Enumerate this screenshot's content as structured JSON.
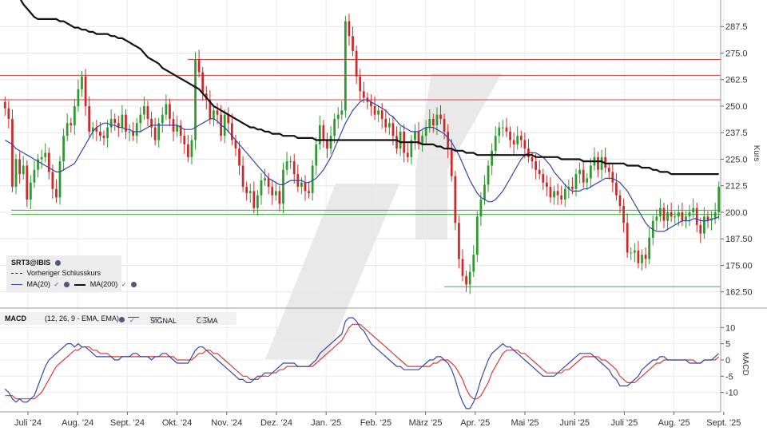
{
  "chart_data": [
    {
      "type": "candlestick",
      "instrument": "SRT3@IBIS",
      "ylabel": "Kurs",
      "ylim": [
        156,
        300
      ],
      "yticks": [
        "287.5",
        "275.0",
        "262.5",
        "250.0",
        "237.5",
        "225.0",
        "212.5",
        "200.0",
        "187.50",
        "175.00",
        "162.50"
      ],
      "xticks": [
        "Juli '24",
        "Aug. '24",
        "Sept. '24",
        "Okt. '24",
        "Nov. '24",
        "Dez. '24",
        "Jan. '25",
        "Feb. '25",
        "März '25",
        "Apr. '25",
        "Mai '25",
        "Juni '25",
        "Juli '25",
        "Aug. '25",
        "Sept. '25"
      ],
      "legend": {
        "title": "SRT3@IBIS",
        "prev_close": "Vorheriger Schlusskurs",
        "ma20": "MA(20)",
        "ma200": "MA(200)"
      },
      "colors": {
        "up": "#2e9a2e",
        "down": "#cc2a2a",
        "ma20": "#3845a8",
        "ma200": "#111111",
        "resistance": "#d93a3a",
        "support": "#3aaa3a"
      },
      "close": [
        249,
        244,
        212,
        225,
        218,
        222,
        206,
        214,
        220,
        225,
        226,
        228,
        219,
        211,
        207,
        224,
        236,
        242,
        241,
        250,
        258,
        264,
        250,
        238,
        240,
        238,
        236,
        235,
        240,
        244,
        242,
        240,
        246,
        238,
        238,
        236,
        242,
        246,
        250,
        244,
        240,
        234,
        242,
        246,
        251,
        244,
        238,
        241,
        236,
        232,
        226,
        234,
        272,
        266,
        256,
        253,
        244,
        248,
        246,
        236,
        246,
        242,
        234,
        230,
        222,
        212,
        209,
        210,
        202,
        208,
        215,
        216,
        212,
        208,
        210,
        204,
        220,
        224,
        224,
        218,
        212,
        214,
        210,
        209,
        222,
        232,
        241,
        234,
        230,
        236,
        244,
        246,
        248,
        290,
        283,
        276,
        264,
        257,
        254,
        252,
        250,
        246,
        248,
        244,
        240,
        242,
        236,
        230,
        238,
        228,
        226,
        234,
        238,
        232,
        236,
        240,
        244,
        241,
        246,
        244,
        238,
        230,
        217,
        195,
        178,
        170,
        166,
        172,
        180,
        198,
        206,
        213,
        222,
        229,
        236,
        240,
        240,
        238,
        234,
        232,
        236,
        234,
        230,
        226,
        224,
        220,
        218,
        214,
        212,
        207,
        210,
        208,
        206,
        211,
        212,
        211,
        218,
        220,
        214,
        216,
        222,
        226,
        220,
        226,
        221,
        219,
        214,
        208,
        203,
        195,
        181,
        181,
        182,
        176,
        180,
        178,
        188,
        196,
        198,
        202,
        196,
        200,
        198,
        198,
        200,
        196,
        198,
        200,
        202,
        194,
        190,
        198,
        196,
        197,
        200,
        212
      ],
      "ma20": [
        234,
        233,
        232,
        230,
        229,
        228,
        227,
        226,
        225,
        224,
        223,
        222,
        221,
        220,
        219,
        219,
        220,
        221,
        222,
        223,
        226,
        229,
        232,
        235,
        238,
        240,
        241,
        242,
        242,
        241,
        241,
        240,
        240,
        239,
        239,
        238,
        238,
        238,
        239,
        240,
        241,
        241,
        241,
        241,
        241,
        241,
        241,
        241,
        240,
        239,
        239,
        239,
        240,
        241,
        242,
        243,
        244,
        244,
        243,
        241,
        240,
        238,
        236,
        234,
        232,
        230,
        228,
        226,
        224,
        222,
        220,
        218,
        216,
        215,
        214,
        213,
        213,
        214,
        215,
        215,
        215,
        215,
        214,
        214,
        215,
        216,
        218,
        220,
        223,
        226,
        230,
        234,
        238,
        242,
        245,
        248,
        250,
        252,
        253,
        253,
        252,
        251,
        250,
        249,
        248,
        246,
        245,
        243,
        241,
        240,
        239,
        238,
        238,
        238,
        239,
        240,
        240,
        240,
        239,
        238,
        237,
        235,
        233,
        230,
        227,
        223,
        219,
        215,
        212,
        209,
        207,
        206,
        205,
        205,
        206,
        208,
        210,
        213,
        216,
        219,
        222,
        225,
        227,
        228,
        228,
        228,
        227,
        226,
        224,
        222,
        219,
        217,
        215,
        213,
        211,
        210,
        210,
        210,
        211,
        211,
        212,
        213,
        214,
        215,
        216,
        216,
        216,
        215,
        214,
        212,
        210,
        207,
        204,
        201,
        198,
        195,
        193,
        192,
        191,
        191,
        191,
        192,
        193,
        194,
        195,
        196,
        196,
        196,
        197,
        197,
        196,
        196,
        196,
        197,
        197,
        198
      ],
      "ma200": [
        310,
        308,
        306,
        303,
        301,
        298,
        296,
        294,
        292,
        291,
        291,
        291,
        291,
        291,
        291,
        290,
        290,
        289,
        288,
        287,
        287,
        286,
        286,
        285,
        285,
        284,
        284,
        284,
        284,
        283,
        283,
        282,
        282,
        281,
        280,
        279,
        278,
        277,
        275,
        273,
        272,
        271,
        270,
        268,
        267,
        266,
        265,
        264,
        263,
        262,
        261,
        260,
        259,
        258,
        256,
        254,
        252,
        250,
        249,
        248,
        247,
        246,
        245,
        244,
        243,
        242,
        241,
        240,
        240,
        239,
        239,
        238,
        238,
        237,
        237,
        237,
        236,
        236,
        236,
        236,
        235,
        235,
        235,
        235,
        235,
        234,
        234,
        234,
        234,
        234,
        234,
        234,
        234,
        234,
        234,
        234,
        234,
        234,
        234,
        234,
        234,
        234,
        234,
        234,
        234,
        234,
        234,
        234,
        233,
        233,
        233,
        233,
        233,
        233,
        232,
        232,
        232,
        232,
        231,
        231,
        230,
        230,
        230,
        229,
        229,
        229,
        228,
        228,
        228,
        227,
        227,
        227,
        227,
        227,
        227,
        227,
        227,
        227,
        227,
        227,
        227,
        227,
        227,
        227,
        227,
        226,
        226,
        226,
        226,
        226,
        226,
        226,
        225,
        225,
        225,
        225,
        225,
        225,
        224,
        224,
        224,
        224,
        224,
        224,
        223,
        223,
        223,
        223,
        223,
        223,
        222,
        222,
        222,
        222,
        221,
        221,
        221,
        220,
        220,
        219,
        219,
        219,
        218,
        218,
        218,
        218,
        218,
        218,
        218,
        218,
        218,
        218,
        218,
        218,
        218,
        218
      ],
      "resistance_levels": [
        272,
        264.5,
        253
      ],
      "support_levels": [
        201,
        199,
        165
      ]
    },
    {
      "type": "line",
      "title": "MACD",
      "params": "(12, 26, 9 - EMA, EMA)",
      "ylabel": "MACD",
      "ylim": [
        -16,
        15
      ],
      "yticks": [
        "10",
        "5",
        "0",
        "-5",
        "-10"
      ],
      "series": [
        {
          "name": "MACD",
          "color": "#3845a8",
          "values": [
            -9,
            -10,
            -12,
            -13,
            -12,
            -13,
            -13,
            -12,
            -11,
            -8,
            -5,
            -2,
            0,
            1,
            2,
            3,
            4,
            5,
            5,
            4,
            5,
            4,
            4,
            3,
            2,
            1,
            1,
            1,
            1,
            1,
            0,
            0,
            1,
            1,
            1,
            2,
            2,
            1,
            1,
            1,
            0,
            1,
            1,
            2,
            2,
            1,
            0,
            -1,
            -1,
            -1,
            -1,
            1,
            3,
            4,
            4,
            3,
            2,
            1,
            0,
            -1,
            -2,
            -3,
            -4,
            -5,
            -6,
            -6,
            -7,
            -7,
            -6,
            -5,
            -5,
            -4,
            -4,
            -4,
            -3,
            -2,
            -1,
            -1,
            -1,
            -1,
            -2,
            -2,
            -2,
            -2,
            -1,
            0,
            2,
            3,
            4,
            5,
            6,
            7,
            8,
            12,
            13,
            13,
            12,
            10,
            9,
            7,
            5,
            4,
            3,
            2,
            1,
            0,
            -1,
            -2,
            -2,
            -3,
            -3,
            -3,
            -3,
            -3,
            -2,
            -1,
            0,
            0,
            1,
            1,
            0,
            -1,
            -3,
            -6,
            -10,
            -13,
            -15,
            -15,
            -13,
            -10,
            -6,
            -3,
            0,
            2,
            3,
            4,
            5,
            4,
            4,
            3,
            2,
            1,
            0,
            -1,
            -2,
            -3,
            -4,
            -5,
            -5,
            -5,
            -5,
            -4,
            -3,
            -2,
            -1,
            0,
            1,
            2,
            2,
            2,
            2,
            1,
            0,
            -1,
            -2,
            -3,
            -5,
            -6,
            -8,
            -8,
            -8,
            -7,
            -6,
            -5,
            -3,
            -2,
            -1,
            0,
            0,
            1,
            1,
            0,
            0,
            0,
            0,
            0,
            0,
            -1,
            -1,
            -1,
            -1,
            0,
            0,
            0,
            1,
            2
          ]
        },
        {
          "name": "SIGNAL",
          "color": "#d93a3a",
          "values": [
            -11,
            -11,
            -11,
            -12,
            -12,
            -12,
            -12,
            -12,
            -12,
            -11,
            -10,
            -8,
            -6,
            -4,
            -2,
            -1,
            0,
            1,
            2,
            3,
            3,
            4,
            4,
            4,
            3,
            3,
            2,
            2,
            2,
            1,
            1,
            1,
            1,
            1,
            1,
            1,
            1,
            1,
            1,
            1,
            1,
            1,
            1,
            1,
            1,
            1,
            1,
            0,
            0,
            0,
            0,
            0,
            1,
            2,
            2,
            3,
            3,
            2,
            2,
            1,
            0,
            -1,
            -2,
            -3,
            -4,
            -5,
            -5,
            -6,
            -6,
            -6,
            -5,
            -5,
            -5,
            -4,
            -4,
            -3,
            -3,
            -2,
            -2,
            -2,
            -2,
            -2,
            -2,
            -2,
            -2,
            -1,
            0,
            1,
            2,
            3,
            4,
            5,
            6,
            8,
            10,
            11,
            11,
            11,
            10,
            9,
            8,
            7,
            6,
            5,
            4,
            3,
            2,
            1,
            0,
            -1,
            -2,
            -2,
            -2,
            -2,
            -2,
            -2,
            -2,
            -1,
            -1,
            0,
            0,
            0,
            -1,
            -2,
            -4,
            -6,
            -9,
            -11,
            -12,
            -12,
            -11,
            -9,
            -7,
            -4,
            -2,
            0,
            2,
            3,
            3,
            3,
            3,
            2,
            2,
            1,
            0,
            -1,
            -2,
            -3,
            -4,
            -4,
            -4,
            -4,
            -4,
            -3,
            -3,
            -2,
            -1,
            0,
            1,
            1,
            1,
            1,
            1,
            0,
            0,
            -1,
            -2,
            -3,
            -5,
            -6,
            -7,
            -7,
            -7,
            -6,
            -5,
            -4,
            -3,
            -2,
            -1,
            -1,
            0,
            0,
            0,
            0,
            0,
            0,
            0,
            0,
            0,
            -1,
            -1,
            0,
            0,
            0,
            0,
            1
          ]
        },
        {
          "name": "OSMA",
          "color": "#e0e0e0",
          "values": []
        }
      ]
    }
  ]
}
